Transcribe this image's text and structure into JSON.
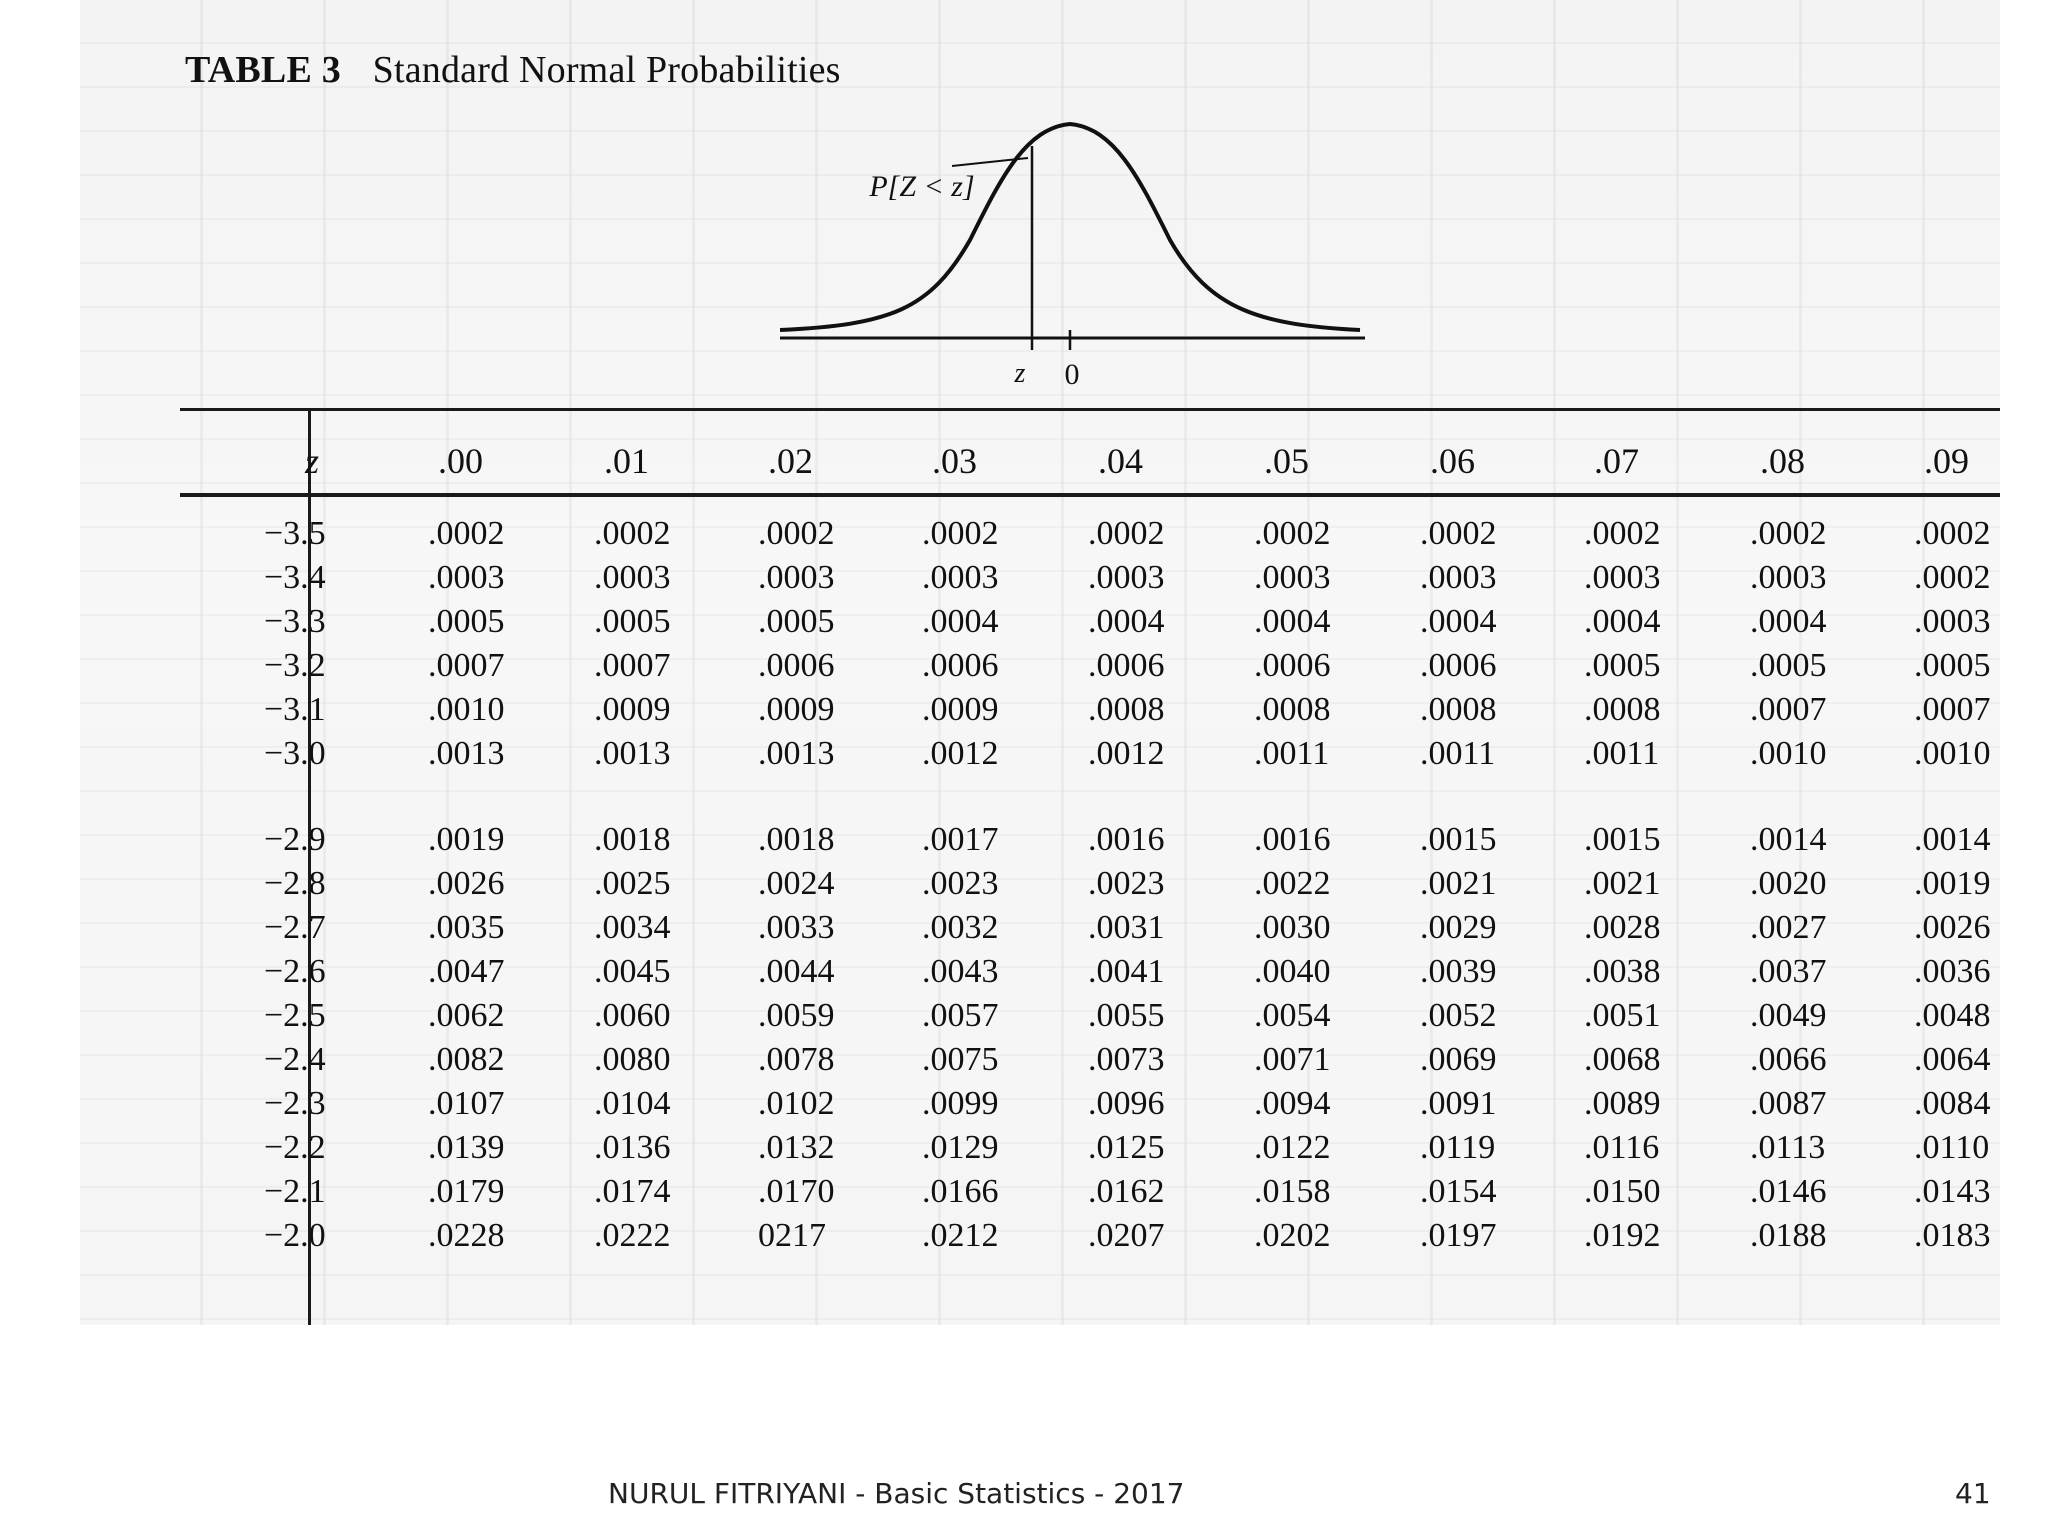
{
  "document": {
    "table_label": "TABLE 3",
    "table_title": "Standard Normal Probabilities",
    "figure": {
      "prob_label": "P[Z < z]",
      "z_label": "z",
      "zero_label": "0"
    },
    "z_header": "z",
    "columns": [
      ".00",
      ".01",
      ".02",
      ".03",
      ".04",
      ".05",
      ".06",
      ".07",
      ".08",
      ".09"
    ],
    "blocks": [
      {
        "rows": [
          {
            "z": "−3.5",
            "values": [
              ".0002",
              ".0002",
              ".0002",
              ".0002",
              ".0002",
              ".0002",
              ".0002",
              ".0002",
              ".0002",
              ".0002"
            ]
          },
          {
            "z": "−3.4",
            "values": [
              ".0003",
              ".0003",
              ".0003",
              ".0003",
              ".0003",
              ".0003",
              ".0003",
              ".0003",
              ".0003",
              ".0002"
            ]
          },
          {
            "z": "−3.3",
            "values": [
              ".0005",
              ".0005",
              ".0005",
              ".0004",
              ".0004",
              ".0004",
              ".0004",
              ".0004",
              ".0004",
              ".0003"
            ]
          },
          {
            "z": "−3.2",
            "values": [
              ".0007",
              ".0007",
              ".0006",
              ".0006",
              ".0006",
              ".0006",
              ".0006",
              ".0005",
              ".0005",
              ".0005"
            ]
          },
          {
            "z": "−3.1",
            "values": [
              ".0010",
              ".0009",
              ".0009",
              ".0009",
              ".0008",
              ".0008",
              ".0008",
              ".0008",
              ".0007",
              ".0007"
            ]
          },
          {
            "z": "−3.0",
            "values": [
              ".0013",
              ".0013",
              ".0013",
              ".0012",
              ".0012",
              ".0011",
              ".0011",
              ".0011",
              ".0010",
              ".0010"
            ]
          }
        ]
      },
      {
        "rows": [
          {
            "z": "−2.9",
            "values": [
              ".0019",
              ".0018",
              ".0018",
              ".0017",
              ".0016",
              ".0016",
              ".0015",
              ".0015",
              ".0014",
              ".0014"
            ]
          },
          {
            "z": "−2.8",
            "values": [
              ".0026",
              ".0025",
              ".0024",
              ".0023",
              ".0023",
              ".0022",
              ".0021",
              ".0021",
              ".0020",
              ".0019"
            ]
          },
          {
            "z": "−2.7",
            "values": [
              ".0035",
              ".0034",
              ".0033",
              ".0032",
              ".0031",
              ".0030",
              ".0029",
              ".0028",
              ".0027",
              ".0026"
            ]
          },
          {
            "z": "−2.6",
            "values": [
              ".0047",
              ".0045",
              ".0044",
              ".0043",
              ".0041",
              ".0040",
              ".0039",
              ".0038",
              ".0037",
              ".0036"
            ]
          },
          {
            "z": "−2.5",
            "values": [
              ".0062",
              ".0060",
              ".0059",
              ".0057",
              ".0055",
              ".0054",
              ".0052",
              ".0051",
              ".0049",
              ".0048"
            ]
          },
          {
            "z": "−2.4",
            "values": [
              ".0082",
              ".0080",
              ".0078",
              ".0075",
              ".0073",
              ".0071",
              ".0069",
              ".0068",
              ".0066",
              ".0064"
            ]
          },
          {
            "z": "−2.3",
            "values": [
              ".0107",
              ".0104",
              ".0102",
              ".0099",
              ".0096",
              ".0094",
              ".0091",
              ".0089",
              ".0087",
              ".0084"
            ]
          },
          {
            "z": "−2.2",
            "values": [
              ".0139",
              ".0136",
              ".0132",
              ".0129",
              ".0125",
              ".0122",
              ".0119",
              ".0116",
              ".0113",
              ".0110"
            ]
          },
          {
            "z": "−2.1",
            "values": [
              ".0179",
              ".0174",
              ".0170",
              ".0166",
              ".0162",
              ".0158",
              ".0154",
              ".0150",
              ".0146",
              ".0143"
            ]
          },
          {
            "z": "−2.0",
            "values": [
              ".0228",
              ".0222",
              "0217",
              ".0212",
              ".0207",
              ".0202",
              ".0197",
              ".0192",
              ".0188",
              ".0183"
            ]
          }
        ]
      }
    ]
  },
  "footer": {
    "text": "NURUL FITRIYANI - Basic Statistics - 2017",
    "page_number": "41"
  }
}
